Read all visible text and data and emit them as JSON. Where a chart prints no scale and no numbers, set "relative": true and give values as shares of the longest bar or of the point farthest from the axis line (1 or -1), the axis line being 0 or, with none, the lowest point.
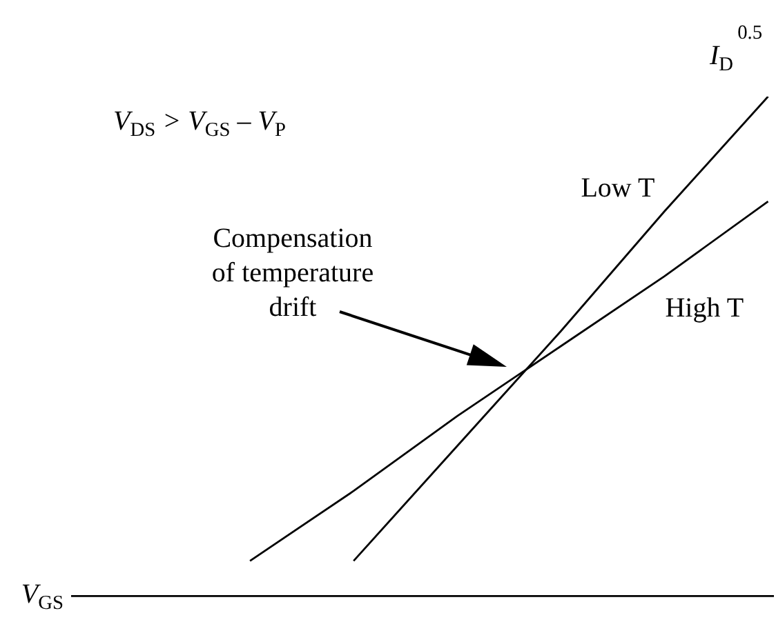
{
  "chart_data": {
    "type": "line",
    "relative": true,
    "categories": [
      null,
      null,
      null,
      null,
      null,
      null
    ],
    "series": [
      {
        "name": "Low T",
        "color": "#000000",
        "values": [
          null,
          0.07,
          0.3,
          0.53,
          0.77,
          1
        ]
      },
      {
        "name": "High T",
        "color": "#000000",
        "values": [
          0.07,
          0.21,
          0.36,
          0.5,
          0.64,
          0.79
        ]
      }
    ],
    "xlabel": "V$_{GS}$",
    "ylabel": "I$_{D}$$^{0.5}$",
    "annotations": [
      "V$_{DS}$ > V$_{GS}$ – V$_{P}$",
      "Compensation of temperature drift"
    ]
  }
}
